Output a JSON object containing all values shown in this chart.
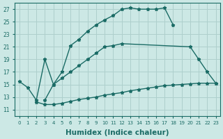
{
  "bg_color": "#cce8e5",
  "grid_color": "#aecfcc",
  "line_color": "#1a6b65",
  "line_width": 1.0,
  "marker": "*",
  "marker_size": 3.5,
  "xlabel": "Humidex (Indice chaleur)",
  "xlabel_fontsize": 7.5,
  "xlim": [
    -0.5,
    23.5
  ],
  "ylim": [
    10,
    28
  ],
  "yticks": [
    11,
    13,
    15,
    17,
    19,
    21,
    23,
    25,
    27
  ],
  "xticks": [
    0,
    1,
    2,
    3,
    4,
    5,
    6,
    7,
    8,
    9,
    10,
    11,
    12,
    13,
    14,
    15,
    16,
    17,
    18,
    19,
    20,
    21,
    22,
    23
  ],
  "series": [
    {
      "x": [
        0,
        1,
        2,
        3,
        4,
        5,
        6,
        7,
        8,
        9,
        10,
        11,
        12,
        13,
        14,
        15,
        16,
        17,
        18
      ],
      "y": [
        15.5,
        14.5,
        12.5,
        19.0,
        15.0,
        17.0,
        21.2,
        22.2,
        23.5,
        24.5,
        25.3,
        26.0,
        27.0,
        27.2,
        27.0,
        27.0,
        27.0,
        27.2,
        24.5
      ]
    },
    {
      "x": [
        3,
        4,
        5,
        6,
        7,
        8,
        9,
        10,
        11,
        12,
        20,
        21,
        22,
        23
      ],
      "y": [
        12.5,
        15.0,
        16.0,
        17.0,
        18.0,
        19.0,
        20.0,
        21.0,
        21.2,
        21.5,
        21.0,
        19.0,
        17.0,
        15.2
      ]
    },
    {
      "x": [
        2,
        3,
        4,
        5,
        6,
        7,
        8,
        9,
        10,
        11,
        12,
        13,
        14,
        15,
        16,
        17,
        18,
        19,
        20,
        21,
        22,
        23
      ],
      "y": [
        12.2,
        11.8,
        11.8,
        12.0,
        12.3,
        12.6,
        12.8,
        13.0,
        13.3,
        13.5,
        13.7,
        14.0,
        14.2,
        14.4,
        14.6,
        14.8,
        14.9,
        15.0,
        15.1,
        15.2,
        15.2,
        15.2
      ]
    }
  ]
}
